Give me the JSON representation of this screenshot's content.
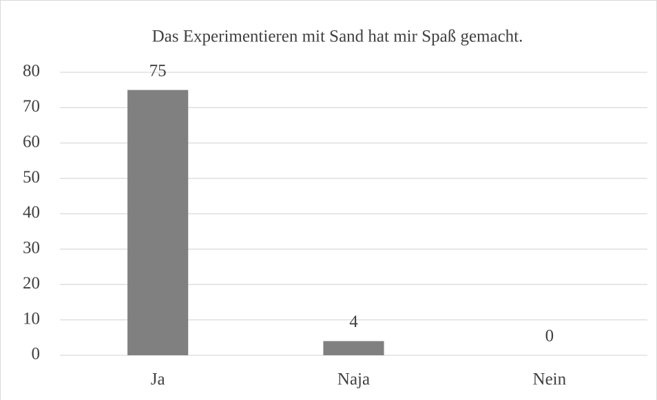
{
  "chart_data": {
    "type": "bar",
    "title": "Das Experimentieren mit Sand hat mir Spaß gemacht.",
    "categories": [
      "Ja",
      "Naja",
      "Nein"
    ],
    "values": [
      75,
      4,
      0
    ],
    "color": "#808080",
    "ylim": [
      0,
      80
    ],
    "yticks": [
      0,
      10,
      20,
      30,
      40,
      50,
      60,
      70,
      80
    ],
    "grid": true
  }
}
